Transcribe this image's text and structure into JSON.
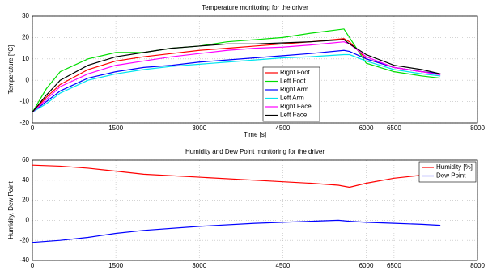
{
  "chart_data": [
    {
      "type": "line",
      "title": "Temperature monitoring for the driver",
      "xlabel": "Time [s]",
      "ylabel": "Temperature [°C]",
      "x": [
        0,
        250,
        500,
        1000,
        1500,
        2000,
        2500,
        3000,
        3500,
        4000,
        4500,
        5000,
        5600,
        5700,
        6000,
        6500,
        7000,
        7333
      ],
      "series": [
        {
          "name": "Right Foot",
          "color": "#ff0000",
          "values": [
            -15,
            -8,
            -2,
            5,
            9,
            11,
            12.5,
            14,
            15,
            16,
            17,
            18,
            19.5,
            18,
            10,
            6,
            4,
            3
          ]
        },
        {
          "name": "Left Foot",
          "color": "#00dd00",
          "values": [
            -15,
            -4,
            4,
            10,
            13,
            13,
            15,
            16,
            18,
            19,
            20,
            22,
            24,
            20,
            8,
            4,
            2,
            1
          ]
        },
        {
          "name": "Right Arm",
          "color": "#0000ff",
          "values": [
            -15,
            -10,
            -5,
            1,
            4,
            6,
            7,
            8.5,
            9.5,
            10.5,
            11.5,
            12.5,
            14,
            13.5,
            10,
            6,
            4,
            3
          ]
        },
        {
          "name": "Left Arm",
          "color": "#00e5ee",
          "values": [
            -15,
            -11,
            -6,
            0,
            3,
            5,
            6.5,
            7.5,
            8.5,
            9.5,
            10.5,
            11,
            12,
            12,
            9,
            5,
            3,
            2
          ]
        },
        {
          "name": "Right Face",
          "color": "#ff00ff",
          "values": [
            -15,
            -9,
            -3,
            3,
            7,
            9,
            11,
            12.5,
            14,
            15,
            15.5,
            16.5,
            18,
            17,
            11,
            6,
            4,
            2.5
          ]
        },
        {
          "name": "Left Face",
          "color": "#000000",
          "values": [
            -15,
            -7,
            0,
            7,
            11,
            13,
            15,
            16,
            17,
            17,
            17.5,
            18,
            19,
            17,
            12,
            7,
            5,
            3
          ]
        }
      ],
      "xlim": [
        0,
        8000
      ],
      "xticks": [
        0,
        1500,
        3000,
        4500,
        6000,
        6500,
        8000
      ],
      "ylim": [
        -20,
        30
      ],
      "yticks": [
        -20,
        -10,
        0,
        10,
        20,
        30
      ],
      "grid": true,
      "legend": "lower center"
    },
    {
      "type": "line",
      "title": "Humidity and Dew Point monitoring for the driver",
      "ylabel": "Humidity, Dew Point",
      "x": [
        0,
        500,
        1000,
        1500,
        2000,
        3000,
        4000,
        5000,
        5500,
        5700,
        6000,
        6500,
        7000,
        7333
      ],
      "series": [
        {
          "name": "Humidity [%]",
          "color": "#ff0000",
          "values": [
            55,
            54,
            52,
            49,
            46,
            43,
            40,
            37,
            35,
            33,
            37,
            42,
            45,
            46
          ]
        },
        {
          "name": "Dew Point",
          "color": "#0000ff",
          "values": [
            -22,
            -20,
            -17,
            -13,
            -10,
            -6,
            -3,
            -1,
            0,
            -1,
            -2,
            -3,
            -4,
            -5
          ]
        }
      ],
      "xlim": [
        0,
        8000
      ],
      "xticks": [
        0,
        1500,
        3000,
        4500,
        6000,
        6500,
        8000
      ],
      "ylim": [
        -40,
        60
      ],
      "yticks": [
        -40,
        -20,
        0,
        20,
        40,
        60
      ],
      "grid": true,
      "legend": "upper right"
    }
  ]
}
